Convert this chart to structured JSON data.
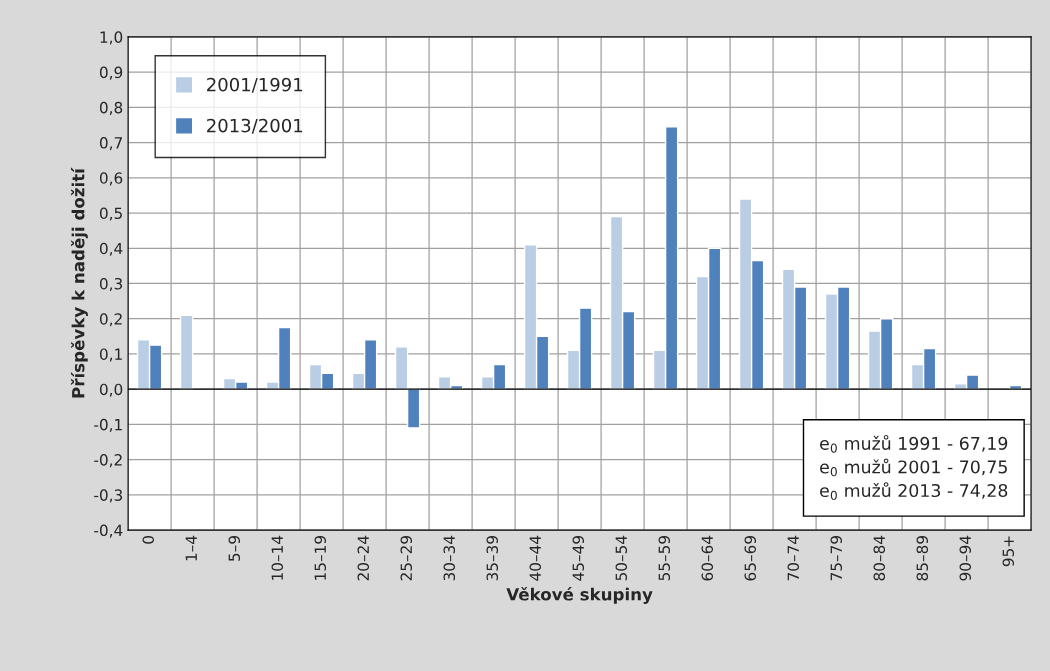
{
  "chart_data": {
    "type": "bar",
    "xlabel": "Věkové skupiny",
    "ylabel": "Příspěvky k naději dožití",
    "categories": [
      "0",
      "1–4",
      "5–9",
      "10–14",
      "15–19",
      "20–24",
      "25–29",
      "30–34",
      "35–39",
      "40–44",
      "45–49",
      "50–54",
      "55–59",
      "60–64",
      "65–69",
      "70–74",
      "75–79",
      "80–84",
      "85–89",
      "90–94",
      "95+"
    ],
    "series": [
      {
        "name": "2001/1991",
        "color": "#b9cde5",
        "values": [
          0.14,
          0.21,
          0.03,
          0.02,
          0.07,
          0.045,
          0.12,
          0.035,
          0.035,
          0.41,
          0.11,
          0.49,
          0.11,
          0.32,
          0.54,
          0.34,
          0.27,
          0.165,
          0.07,
          0.015,
          null
        ]
      },
      {
        "name": "2013/2001",
        "color": "#4f81bd",
        "values": [
          0.125,
          null,
          0.02,
          0.175,
          0.045,
          0.14,
          -0.11,
          0.01,
          0.07,
          0.15,
          0.23,
          0.22,
          0.745,
          0.4,
          0.365,
          0.29,
          0.29,
          0.2,
          0.115,
          0.04,
          0.01
        ]
      }
    ],
    "ylim": [
      -0.4,
      1.0
    ],
    "yticks": [
      {
        "value": -0.4,
        "label": "-0,4"
      },
      {
        "value": -0.3,
        "label": "-0,3"
      },
      {
        "value": -0.2,
        "label": "-0,2"
      },
      {
        "value": -0.1,
        "label": "-0,1"
      },
      {
        "value": 0,
        "label": "0,0"
      },
      {
        "value": 0.1,
        "label": "0,1"
      },
      {
        "value": 0.2,
        "label": "0,2"
      },
      {
        "value": 0.3,
        "label": "0,3"
      },
      {
        "value": 0.4,
        "label": "0,4"
      },
      {
        "value": 0.5,
        "label": "0,5"
      },
      {
        "value": 0.6,
        "label": "0,6"
      },
      {
        "value": 0.7,
        "label": "0,7"
      },
      {
        "value": 0.8,
        "label": "0,8"
      },
      {
        "value": 0.9,
        "label": "0,9"
      },
      {
        "value": 1.0,
        "label": "1,0"
      }
    ],
    "annotations": [
      "e$_{0}$ mužů 1991 - 67,19",
      "e$_{0}$ mužů 2001 - 70,75",
      "e$_{0}$ mužů 2013 - 74,28"
    ],
    "grid": true,
    "legend": "top left"
  }
}
